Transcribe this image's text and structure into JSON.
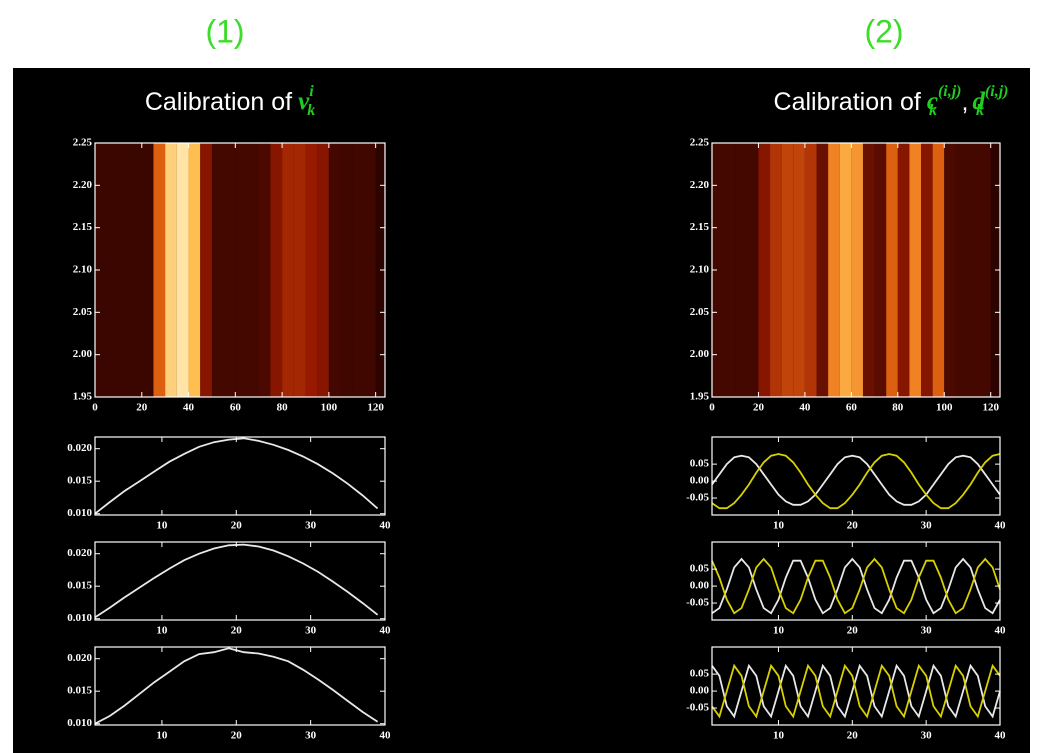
{
  "labels": [
    "(1)",
    "(2)"
  ],
  "chart_data": [
    {
      "type": "heatmap",
      "title": "Calibration of",
      "title_symbols": [
        {
          "base": "v",
          "sub": "k",
          "sup": "i"
        }
      ],
      "xbins": [
        0,
        5,
        10,
        15,
        20,
        25,
        30,
        35,
        40,
        45,
        50,
        55,
        60,
        65,
        70,
        75,
        80,
        85,
        90,
        95,
        100,
        105,
        110,
        115,
        120
      ],
      "intensity": [
        0.05,
        0.05,
        0.05,
        0.05,
        0.05,
        0.6,
        0.9,
        0.95,
        0.85,
        0.3,
        0.08,
        0.08,
        0.08,
        0.08,
        0.1,
        0.3,
        0.4,
        0.4,
        0.35,
        0.3,
        0.08,
        0.06,
        0.06,
        0.06
      ],
      "xlim": [
        0,
        124
      ],
      "ylim": [
        1.95,
        2.25
      ],
      "xticks": [
        0,
        20,
        40,
        60,
        80,
        100,
        120
      ],
      "yticks": [
        1.95,
        {
          "value": 2,
          "label": "2.00"
        },
        2.05,
        {
          "value": 2.1,
          "label": "2.10"
        },
        2.15,
        {
          "value": 2.2,
          "label": "2.20"
        },
        2.25
      ]
    },
    {
      "type": "line",
      "x": [
        1,
        3,
        5,
        7,
        9,
        11,
        13,
        15,
        17,
        19,
        21,
        23,
        25,
        27,
        29,
        31,
        33,
        35,
        37,
        39
      ],
      "series": [
        {
          "color": "#e8e8e8",
          "values": [
            0.01,
            0.0118,
            0.0135,
            0.015,
            0.0165,
            0.018,
            0.0192,
            0.0203,
            0.021,
            0.0214,
            0.0216,
            0.0212,
            0.0206,
            0.0198,
            0.0188,
            0.0176,
            0.0162,
            0.0146,
            0.0128,
            0.0108
          ]
        }
      ],
      "xlim": [
        1,
        40
      ],
      "ylim": [
        0.0098,
        0.0218
      ],
      "xticks": [
        10,
        20,
        30,
        40
      ],
      "yticks": [
        {
          "value": 0.01,
          "label": "0.010"
        },
        0.015,
        {
          "value": 0.02,
          "label": "0.020"
        }
      ]
    },
    {
      "type": "line",
      "x": [
        1,
        3,
        5,
        7,
        9,
        11,
        13,
        15,
        17,
        19,
        21,
        23,
        25,
        27,
        29,
        31,
        33,
        35,
        37,
        39
      ],
      "series": [
        {
          "color": "#e8e8e8",
          "values": [
            0.0102,
            0.0117,
            0.0133,
            0.0148,
            0.0163,
            0.0177,
            0.019,
            0.02,
            0.0208,
            0.0213,
            0.0214,
            0.0211,
            0.0205,
            0.0196,
            0.0185,
            0.0172,
            0.0157,
            0.0141,
            0.0124,
            0.0106
          ]
        }
      ],
      "xlim": [
        1,
        40
      ],
      "ylim": [
        0.0098,
        0.0218
      ],
      "xticks": [
        10,
        20,
        30,
        40
      ],
      "yticks": [
        {
          "value": 0.01,
          "label": "0.010"
        },
        0.015,
        {
          "value": 0.02,
          "label": "0.020"
        }
      ]
    },
    {
      "type": "line",
      "x": [
        1,
        3,
        5,
        7,
        9,
        11,
        13,
        15,
        17,
        19,
        21,
        23,
        25,
        27,
        29,
        31,
        33,
        35,
        37,
        39
      ],
      "series": [
        {
          "color": "#e8e8e8",
          "values": [
            0.01,
            0.0112,
            0.0128,
            0.0146,
            0.0164,
            0.018,
            0.0196,
            0.0207,
            0.021,
            0.0216,
            0.021,
            0.0208,
            0.0203,
            0.0196,
            0.0183,
            0.0168,
            0.0152,
            0.0135,
            0.0118,
            0.0103
          ]
        }
      ],
      "xlim": [
        1,
        40
      ],
      "ylim": [
        0.0098,
        0.0218
      ],
      "xticks": [
        10,
        20,
        30,
        40
      ],
      "yticks": [
        {
          "value": 0.01,
          "label": "0.010"
        },
        0.015,
        {
          "value": 0.02,
          "label": "0.020"
        }
      ]
    },
    {
      "type": "heatmap",
      "title": "Calibration of",
      "title_separator": ",",
      "title_symbols": [
        {
          "base": "c",
          "sub": "k",
          "sup": "(i,j)"
        },
        {
          "base": "d",
          "sub": "k",
          "sup": "(i,j)"
        }
      ],
      "xbins": [
        0,
        5,
        10,
        15,
        20,
        25,
        30,
        35,
        40,
        45,
        50,
        55,
        60,
        65,
        70,
        75,
        80,
        85,
        90,
        95,
        100,
        105,
        110,
        115,
        120
      ],
      "intensity": [
        0.08,
        0.08,
        0.08,
        0.08,
        0.3,
        0.45,
        0.5,
        0.5,
        0.45,
        0.2,
        0.7,
        0.8,
        0.75,
        0.2,
        0.15,
        0.6,
        0.3,
        0.7,
        0.3,
        0.6,
        0.1,
        0.08,
        0.08,
        0.08
      ],
      "xlim": [
        0,
        124
      ],
      "ylim": [
        1.95,
        2.25
      ],
      "xticks": [
        0,
        20,
        40,
        60,
        80,
        100,
        120
      ],
      "yticks": [
        1.95,
        {
          "value": 2,
          "label": "2.00"
        },
        2.05,
        {
          "value": 2.1,
          "label": "2.10"
        },
        2.15,
        {
          "value": 2.2,
          "label": "2.20"
        },
        2.25
      ]
    },
    {
      "type": "line",
      "x": [
        1,
        2,
        3,
        4,
        5,
        6,
        7,
        8,
        9,
        10,
        11,
        12,
        13,
        14,
        15,
        16,
        17,
        18,
        19,
        20,
        21,
        22,
        23,
        24,
        25,
        26,
        27,
        28,
        29,
        30,
        31,
        32,
        33,
        34,
        35,
        36,
        37,
        38,
        39,
        40
      ],
      "series": [
        {
          "color": "#e8e8e8",
          "values": [
            -0.01,
            0.02,
            0.05,
            0.07,
            0.075,
            0.07,
            0.05,
            0.02,
            -0.01,
            -0.04,
            -0.06,
            -0.07,
            -0.07,
            -0.06,
            -0.04,
            -0.01,
            0.02,
            0.05,
            0.07,
            0.075,
            0.07,
            0.05,
            0.02,
            -0.01,
            -0.04,
            -0.06,
            -0.07,
            -0.07,
            -0.06,
            -0.04,
            -0.01,
            0.02,
            0.05,
            0.07,
            0.075,
            0.07,
            0.05,
            0.02,
            -0.01,
            -0.04
          ]
        },
        {
          "color": "#d8d000",
          "values": [
            -0.065,
            -0.08,
            -0.08,
            -0.065,
            -0.04,
            -0.01,
            0.025,
            0.055,
            0.075,
            0.08,
            0.075,
            0.055,
            0.025,
            -0.01,
            -0.04,
            -0.065,
            -0.08,
            -0.08,
            -0.065,
            -0.04,
            -0.01,
            0.025,
            0.055,
            0.075,
            0.08,
            0.075,
            0.055,
            0.025,
            -0.01,
            -0.04,
            -0.065,
            -0.08,
            -0.08,
            -0.065,
            -0.04,
            -0.01,
            0.025,
            0.055,
            0.075,
            0.08
          ]
        }
      ],
      "xlim": [
        1,
        40
      ],
      "ylim": [
        -0.1,
        0.13
      ],
      "xticks": [
        10,
        20,
        30,
        40
      ],
      "yticks": [
        -0.05,
        {
          "value": 0,
          "label": "0.00"
        },
        0.05
      ]
    },
    {
      "type": "line",
      "x": [
        1,
        2,
        3,
        4,
        5,
        6,
        7,
        8,
        9,
        10,
        11,
        12,
        13,
        14,
        15,
        16,
        17,
        18,
        19,
        20,
        21,
        22,
        23,
        24,
        25,
        26,
        27,
        28,
        29,
        30,
        31,
        32,
        33,
        34,
        35,
        36,
        37,
        38,
        39,
        40
      ],
      "series": [
        {
          "color": "#e8e8e8",
          "values": [
            -0.08,
            -0.065,
            -0.01,
            0.055,
            0.08,
            0.055,
            -0.01,
            -0.065,
            -0.08,
            -0.04,
            0.025,
            0.075,
            0.075,
            0.025,
            -0.04,
            -0.08,
            -0.065,
            -0.01,
            0.055,
            0.08,
            0.055,
            -0.01,
            -0.065,
            -0.08,
            -0.04,
            0.025,
            0.075,
            0.075,
            0.025,
            -0.04,
            -0.08,
            -0.065,
            -0.01,
            0.055,
            0.08,
            0.055,
            -0.01,
            -0.065,
            -0.08,
            -0.04
          ]
        },
        {
          "color": "#d8d000",
          "values": [
            0.075,
            0.025,
            -0.04,
            -0.08,
            -0.065,
            -0.01,
            0.055,
            0.08,
            0.055,
            -0.01,
            -0.065,
            -0.08,
            -0.04,
            0.025,
            0.075,
            0.075,
            0.025,
            -0.04,
            -0.08,
            -0.065,
            -0.01,
            0.055,
            0.08,
            0.055,
            -0.01,
            -0.065,
            -0.08,
            -0.04,
            0.025,
            0.075,
            0.075,
            0.025,
            -0.04,
            -0.08,
            -0.065,
            -0.01,
            0.055,
            0.08,
            0.055,
            -0.01
          ]
        }
      ],
      "xlim": [
        1,
        40
      ],
      "ylim": [
        -0.1,
        0.13
      ],
      "xticks": [
        10,
        20,
        30,
        40
      ],
      "yticks": [
        -0.05,
        {
          "value": 0,
          "label": "0.00"
        },
        0.05
      ]
    },
    {
      "type": "line",
      "x": [
        1,
        2,
        3,
        4,
        5,
        6,
        7,
        8,
        9,
        10,
        11,
        12,
        13,
        14,
        15,
        16,
        17,
        18,
        19,
        20,
        21,
        22,
        23,
        24,
        25,
        26,
        27,
        28,
        29,
        30,
        31,
        32,
        33,
        34,
        35,
        36,
        37,
        38,
        39,
        40
      ],
      "series": [
        {
          "color": "#e8e8e8",
          "values": [
            0.075,
            0.045,
            -0.045,
            -0.075,
            0,
            0.075,
            0.045,
            -0.045,
            -0.075,
            0,
            0.075,
            0.045,
            -0.045,
            -0.075,
            0,
            0.075,
            0.045,
            -0.045,
            -0.075,
            0,
            0.075,
            0.045,
            -0.045,
            -0.075,
            0,
            0.075,
            0.045,
            -0.045,
            -0.075,
            0,
            0.075,
            0.045,
            -0.045,
            -0.075,
            0,
            0.075,
            0.045,
            -0.045,
            -0.075,
            0
          ]
        },
        {
          "color": "#d8d000",
          "values": [
            -0.045,
            -0.075,
            0,
            0.075,
            0.045,
            -0.045,
            -0.075,
            0,
            0.075,
            0.045,
            -0.045,
            -0.075,
            0,
            0.075,
            0.045,
            -0.045,
            -0.075,
            0,
            0.075,
            0.045,
            -0.045,
            -0.075,
            0,
            0.075,
            0.045,
            -0.045,
            -0.075,
            0,
            0.075,
            0.045,
            -0.045,
            -0.075,
            0,
            0.075,
            0.045,
            -0.045,
            -0.075,
            0,
            0.075,
            0.045
          ]
        }
      ],
      "xlim": [
        1,
        40
      ],
      "ylim": [
        -0.1,
        0.13
      ],
      "xticks": [
        10,
        20,
        30,
        40
      ],
      "yticks": [
        -0.05,
        {
          "value": 0,
          "label": "0.00"
        },
        0.05
      ]
    }
  ]
}
